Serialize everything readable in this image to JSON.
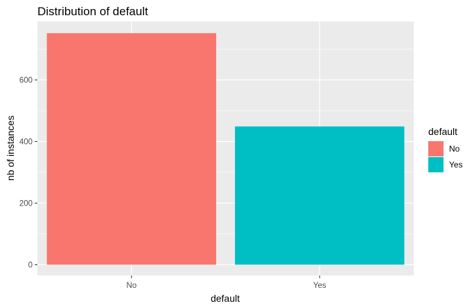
{
  "chart_data": {
    "type": "bar",
    "title": "Distribution of default",
    "xlabel": "default",
    "ylabel": "nb of instances",
    "categories": [
      "No",
      "Yes"
    ],
    "values": [
      752,
      449
    ],
    "colors": [
      "#F8766D",
      "#00BFC4"
    ],
    "ylim": [
      -35,
      790
    ],
    "yticks": [
      0,
      200,
      400,
      600
    ],
    "grid": true,
    "legend": {
      "title": "default",
      "position": "right",
      "entries": [
        {
          "label": "No",
          "color": "#F8766D"
        },
        {
          "label": "Yes",
          "color": "#00BFC4"
        }
      ]
    }
  }
}
